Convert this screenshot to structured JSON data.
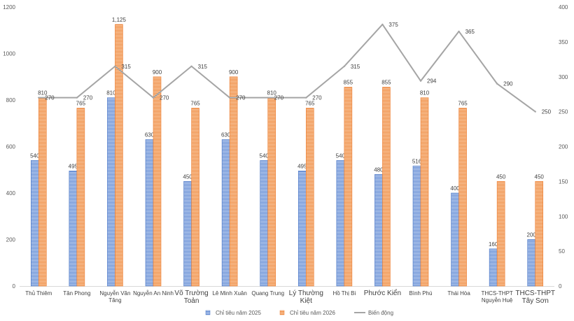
{
  "chart_data": {
    "type": "bar",
    "categories": [
      [
        "Thủ Thiêm"
      ],
      [
        "Tân Phong"
      ],
      [
        "Nguyễn Văn",
        "Tăng"
      ],
      [
        "Nguyễn An Ninh"
      ],
      [
        "Võ Trường",
        "Toản"
      ],
      [
        "Lê Minh Xuân"
      ],
      [
        "Quang Trung"
      ],
      [
        "Lý Thường",
        "Kiệt"
      ],
      [
        "Hồ Thị Bi"
      ],
      [
        "Phước Kiển"
      ],
      [
        "Bình Phú"
      ],
      [
        "Thái Hòa"
      ],
      [
        "THCS-THPT",
        "Nguyễn Huệ"
      ],
      [
        "THCS-THPT",
        "Tây Sơn"
      ]
    ],
    "category_large": [
      false,
      false,
      false,
      false,
      true,
      false,
      false,
      true,
      false,
      true,
      false,
      false,
      false,
      true
    ],
    "series": [
      {
        "name": "Chỉ tiêu năm 2025",
        "color": "#4472c4",
        "axis": "left",
        "values": [
          540,
          495,
          810,
          630,
          450,
          630,
          540,
          495,
          540,
          480,
          516,
          400,
          160,
          200
        ],
        "labels": [
          "540",
          "495",
          "810",
          "630",
          "450",
          "630",
          "540",
          "495",
          "540",
          "480",
          "516",
          "400",
          "160",
          "200"
        ]
      },
      {
        "name": "Chỉ tiêu năm 2026",
        "color": "#ed7d31",
        "axis": "left",
        "values": [
          810,
          765,
          1125,
          900,
          765,
          900,
          810,
          765,
          855,
          855,
          810,
          765,
          450,
          450
        ],
        "labels": [
          "810",
          "765",
          "1,125",
          "900",
          "765",
          "900",
          "810",
          "765",
          "855",
          "855",
          "810",
          "765",
          "450",
          "450"
        ]
      },
      {
        "name": "Biến động",
        "type": "line",
        "color": "#a5a5a5",
        "axis": "right",
        "values": [
          270,
          270,
          315,
          270,
          315,
          270,
          270,
          270,
          315,
          375,
          294,
          365,
          290,
          250
        ],
        "labels": [
          "270",
          "270",
          "315",
          "270",
          "315",
          "270",
          "270",
          "270",
          "315",
          "375",
          "294",
          "365",
          "290",
          "250"
        ]
      }
    ],
    "y_left": {
      "min": 0,
      "max": 1200,
      "ticks": [
        "0",
        "200",
        "400",
        "600",
        "800",
        "1000",
        "1200"
      ]
    },
    "y_right": {
      "min": 0,
      "max": 400,
      "ticks": [
        "0",
        "50",
        "100",
        "150",
        "200",
        "250",
        "300",
        "350",
        "400"
      ]
    },
    "grid": false,
    "legend": "bottom"
  }
}
